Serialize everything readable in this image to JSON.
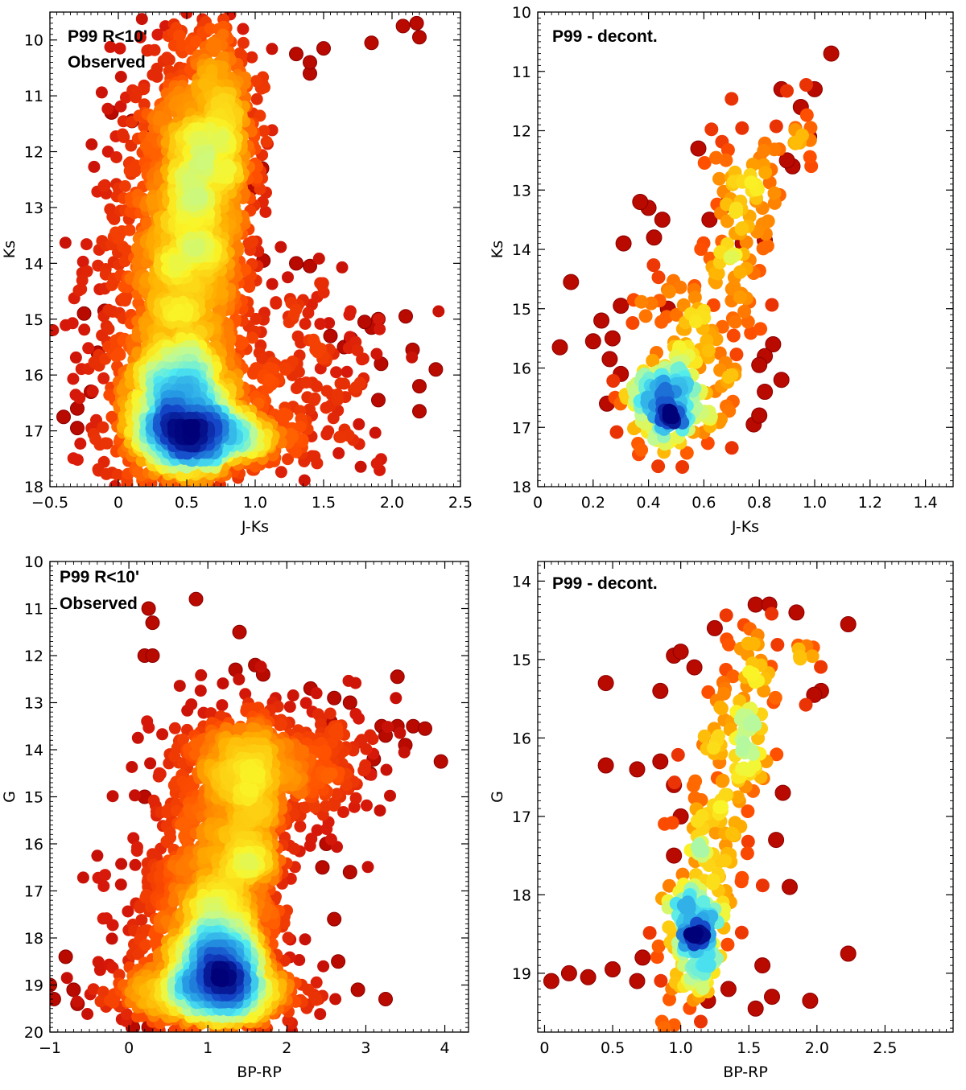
{
  "chart_data": [
    {
      "id": "p1",
      "type": "scatter",
      "subtype": "density-colored CMD",
      "annotation": [
        "P99 R<10'",
        "Observed"
      ],
      "xlabel": "J-Ks",
      "ylabel": "Ks",
      "xlim": [
        -0.5,
        2.5
      ],
      "ylim": [
        18,
        9.5
      ],
      "y_inverted": true,
      "xticks": [
        -0.5,
        0,
        0.5,
        1.0,
        1.5,
        2.0,
        2.5
      ],
      "xtick_labels": [
        "−0.5",
        "0",
        "0.5",
        "1.0",
        "1.5",
        "2.0",
        "2.5"
      ],
      "xminor": 0.05,
      "yticks": [
        10,
        11,
        12,
        13,
        14,
        15,
        16,
        17,
        18
      ],
      "ytick_labels": [
        "10",
        "11",
        "12",
        "13",
        "14",
        "15",
        "16",
        "17",
        "18"
      ],
      "yminor": 0.1,
      "density_model": {
        "clusters": [
          {
            "x": 0.45,
            "y": 16.6,
            "sx": 0.2,
            "sy": 0.7,
            "n": 9000
          },
          {
            "x": 0.65,
            "y": 17.1,
            "sx": 0.25,
            "sy": 0.25,
            "n": 5000
          },
          {
            "x": 0.55,
            "y": 13.4,
            "sx": 0.18,
            "sy": 1.7,
            "n": 7000
          },
          {
            "x": 0.75,
            "y": 11.8,
            "sx": 0.15,
            "sy": 1.1,
            "n": 3500
          },
          {
            "x": 0.3,
            "y": 14.5,
            "sx": 0.25,
            "sy": 2.0,
            "n": 4000
          },
          {
            "x": 1.3,
            "y": 16.0,
            "sx": 0.35,
            "sy": 1.0,
            "n": 1200
          }
        ],
        "scatter": [
          [
            2.08,
            9.75
          ],
          [
            2.18,
            9.7
          ],
          [
            2.2,
            9.95
          ],
          [
            1.85,
            10.05
          ],
          [
            1.3,
            10.25
          ],
          [
            1.4,
            10.6
          ],
          [
            1.5,
            10.15
          ],
          [
            1.4,
            10.4
          ],
          [
            0.1,
            11.45
          ],
          [
            0.25,
            11.7
          ],
          [
            -0.05,
            11.3
          ],
          [
            1.9,
            15.0
          ],
          [
            2.1,
            14.95
          ],
          [
            2.15,
            15.55
          ],
          [
            2.32,
            15.9
          ],
          [
            2.2,
            16.2
          ],
          [
            2.2,
            16.65
          ],
          [
            1.9,
            16.45
          ],
          [
            1.85,
            15.15
          ],
          [
            1.65,
            15.5
          ],
          [
            1.3,
            14.0
          ],
          [
            1.4,
            14.05
          ],
          [
            1.06,
            13.95
          ],
          [
            0.98,
            12.65
          ],
          [
            1.05,
            12.3
          ],
          [
            -0.3,
            16.6
          ],
          [
            -0.4,
            16.75
          ],
          [
            -0.3,
            16.95
          ],
          [
            -0.2,
            16.3
          ],
          [
            -0.15,
            15.6
          ],
          [
            -0.25,
            14.9
          ],
          [
            -0.1,
            14.85
          ],
          [
            1.8,
            15.05
          ],
          [
            1.92,
            15.8
          ],
          [
            1.7,
            15.35
          ],
          [
            1.55,
            15.3
          ]
        ]
      }
    },
    {
      "id": "p2",
      "type": "scatter",
      "subtype": "density-colored CMD (decontaminated)",
      "annotation": [
        "P99 - decont."
      ],
      "xlabel": "J-Ks",
      "ylabel": "Ks",
      "xlim": [
        0,
        1.5
      ],
      "ylim": [
        18,
        10
      ],
      "y_inverted": true,
      "xticks": [
        0,
        0.2,
        0.4,
        0.6,
        0.8,
        1.0,
        1.2,
        1.4
      ],
      "xtick_labels": [
        "0",
        "0.2",
        "0.4",
        "0.6",
        "0.8",
        "1.0",
        "1.2",
        "1.4"
      ],
      "xminor": 0.025,
      "yticks": [
        10,
        11,
        12,
        13,
        14,
        15,
        16,
        17,
        18
      ],
      "ytick_labels": [
        "10",
        "11",
        "12",
        "13",
        "14",
        "15",
        "16",
        "17",
        "18"
      ],
      "yminor": 0.1,
      "density_model": {
        "clusters": [
          {
            "x": 0.47,
            "y": 16.6,
            "sx": 0.08,
            "sy": 0.4,
            "n": 160
          },
          {
            "x": 0.55,
            "y": 15.8,
            "sx": 0.09,
            "sy": 0.8,
            "n": 90
          },
          {
            "x": 0.7,
            "y": 14.2,
            "sx": 0.06,
            "sy": 1.2,
            "n": 80
          },
          {
            "x": 0.78,
            "y": 12.8,
            "sx": 0.05,
            "sy": 0.5,
            "n": 35
          },
          {
            "x": 0.95,
            "y": 11.8,
            "sx": 0.03,
            "sy": 0.4,
            "n": 14
          }
        ],
        "scatter": [
          [
            1.06,
            10.7
          ],
          [
            0.08,
            15.65
          ],
          [
            0.12,
            14.55
          ],
          [
            0.25,
            16.6
          ],
          [
            0.3,
            14.95
          ],
          [
            0.31,
            13.9
          ],
          [
            0.4,
            13.3
          ],
          [
            0.37,
            13.2
          ],
          [
            0.42,
            13.8
          ],
          [
            0.45,
            13.5
          ],
          [
            0.58,
            12.3
          ],
          [
            0.92,
            12.6
          ],
          [
            1.0,
            11.3
          ],
          [
            0.95,
            11.6
          ],
          [
            0.88,
            11.3
          ],
          [
            0.85,
            15.6
          ],
          [
            0.82,
            15.8
          ],
          [
            0.8,
            15.95
          ],
          [
            0.88,
            16.2
          ],
          [
            0.82,
            16.4
          ],
          [
            0.78,
            16.95
          ],
          [
            0.8,
            16.8
          ],
          [
            0.23,
            15.2
          ],
          [
            0.27,
            15.5
          ],
          [
            0.3,
            16.1
          ],
          [
            0.62,
            13.5
          ],
          [
            0.68,
            13.25
          ],
          [
            0.74,
            13.9
          ],
          [
            0.82,
            13.85
          ],
          [
            0.9,
            12.5
          ],
          [
            0.98,
            12.1
          ],
          [
            0.2,
            15.55
          ],
          [
            0.26,
            15.85
          ],
          [
            0.47,
            15.0
          ]
        ]
      }
    },
    {
      "id": "p3",
      "type": "scatter",
      "subtype": "density-colored CMD",
      "annotation": [
        "P99 R<10'",
        "Observed"
      ],
      "xlabel": "BP-RP",
      "ylabel": "G",
      "xlim": [
        -1,
        4.3
      ],
      "ylim": [
        20,
        10
      ],
      "y_inverted": true,
      "xticks": [
        -1,
        0,
        1,
        2,
        3,
        4
      ],
      "xtick_labels": [
        "−1",
        "0",
        "1",
        "2",
        "3",
        "4"
      ],
      "xminor": 0.1,
      "yticks": [
        10,
        11,
        12,
        13,
        14,
        15,
        16,
        17,
        18,
        19,
        20
      ],
      "ytick_labels": [
        "10",
        "11",
        "12",
        "13",
        "14",
        "15",
        "16",
        "17",
        "18",
        "19",
        "20"
      ],
      "yminor": 0.1,
      "density_model": {
        "clusters": [
          {
            "x": 1.15,
            "y": 18.6,
            "sx": 0.3,
            "sy": 0.6,
            "n": 9000
          },
          {
            "x": 1.0,
            "y": 19.2,
            "sx": 0.55,
            "sy": 0.3,
            "n": 4500
          },
          {
            "x": 1.55,
            "y": 15.9,
            "sx": 0.22,
            "sy": 1.2,
            "n": 3500
          },
          {
            "x": 1.1,
            "y": 16.7,
            "sx": 0.3,
            "sy": 1.5,
            "n": 4000
          },
          {
            "x": 1.6,
            "y": 14.3,
            "sx": 0.6,
            "sy": 0.5,
            "n": 2500
          },
          {
            "x": 0.6,
            "y": 17.6,
            "sx": 0.45,
            "sy": 1.0,
            "n": 1800
          },
          {
            "x": 2.2,
            "y": 14.4,
            "sx": 0.5,
            "sy": 0.8,
            "n": 900
          }
        ],
        "scatter": [
          [
            0.25,
            11.0
          ],
          [
            0.3,
            11.3
          ],
          [
            0.85,
            10.8
          ],
          [
            1.4,
            11.5
          ],
          [
            1.35,
            12.3
          ],
          [
            1.6,
            12.2
          ],
          [
            1.7,
            12.4
          ],
          [
            0.2,
            12.0
          ],
          [
            0.3,
            12.0
          ],
          [
            3.4,
            12.45
          ],
          [
            3.2,
            13.5
          ],
          [
            3.4,
            13.5
          ],
          [
            3.6,
            13.5
          ],
          [
            3.75,
            13.55
          ],
          [
            3.95,
            14.25
          ],
          [
            3.1,
            14.2
          ],
          [
            3.25,
            13.7
          ],
          [
            3.05,
            14.5
          ],
          [
            0.2,
            15.0
          ],
          [
            2.5,
            16.0
          ],
          [
            2.45,
            16.5
          ],
          [
            2.8,
            16.6
          ],
          [
            2.6,
            17.6
          ],
          [
            3.25,
            19.3
          ],
          [
            2.9,
            19.1
          ],
          [
            2.65,
            18.5
          ],
          [
            -1.0,
            19.0
          ],
          [
            -0.95,
            19.3
          ],
          [
            -0.8,
            18.4
          ],
          [
            -0.7,
            19.1
          ],
          [
            -0.65,
            19.4
          ],
          [
            0.05,
            19.9
          ],
          [
            0.25,
            19.9
          ],
          [
            2.8,
            13.0
          ],
          [
            2.6,
            12.9
          ],
          [
            3.5,
            13.9
          ],
          [
            2.3,
            12.7
          ],
          [
            2.55,
            13.4
          ]
        ]
      }
    },
    {
      "id": "p4",
      "type": "scatter",
      "subtype": "density-colored CMD (decontaminated)",
      "annotation": [
        "P99 - decont."
      ],
      "xlabel": "BP-RP",
      "ylabel": "G",
      "xlim": [
        -0.05,
        3.0
      ],
      "ylim": [
        19.75,
        13.75
      ],
      "y_inverted": true,
      "xticks": [
        0,
        0.5,
        1.0,
        1.5,
        2.0,
        2.5
      ],
      "xtick_labels": [
        "0",
        "0.5",
        "1.0",
        "1.5",
        "2.0",
        "2.5"
      ],
      "xminor": 0.05,
      "yticks": [
        14,
        15,
        16,
        17,
        18,
        19
      ],
      "ytick_labels": [
        "14",
        "15",
        "16",
        "17",
        "18",
        "19"
      ],
      "yminor": 0.1,
      "density_model": {
        "clusters": [
          {
            "x": 1.1,
            "y": 18.5,
            "sx": 0.12,
            "sy": 0.45,
            "n": 170
          },
          {
            "x": 1.25,
            "y": 17.2,
            "sx": 0.12,
            "sy": 0.8,
            "n": 90
          },
          {
            "x": 1.45,
            "y": 16.0,
            "sx": 0.1,
            "sy": 0.7,
            "n": 70
          },
          {
            "x": 1.6,
            "y": 15.3,
            "sx": 0.12,
            "sy": 0.5,
            "n": 30
          },
          {
            "x": 1.88,
            "y": 15.0,
            "sx": 0.05,
            "sy": 0.2,
            "n": 8
          }
        ],
        "scatter": [
          [
            0.05,
            19.1
          ],
          [
            0.18,
            19.0
          ],
          [
            0.32,
            19.05
          ],
          [
            0.5,
            18.95
          ],
          [
            0.45,
            15.3
          ],
          [
            0.45,
            16.35
          ],
          [
            0.68,
            16.4
          ],
          [
            0.72,
            18.8
          ],
          [
            0.68,
            19.1
          ],
          [
            0.85,
            15.4
          ],
          [
            0.95,
            14.95
          ],
          [
            1.0,
            14.9
          ],
          [
            1.1,
            15.1
          ],
          [
            1.25,
            14.6
          ],
          [
            1.55,
            14.3
          ],
          [
            1.65,
            14.3
          ],
          [
            1.85,
            14.4
          ],
          [
            2.23,
            14.55
          ],
          [
            2.03,
            15.4
          ],
          [
            1.98,
            15.45
          ],
          [
            1.8,
            17.9
          ],
          [
            2.23,
            18.75
          ],
          [
            1.95,
            19.35
          ],
          [
            1.55,
            19.45
          ],
          [
            1.67,
            19.3
          ],
          [
            1.35,
            19.2
          ],
          [
            1.2,
            19.35
          ],
          [
            0.85,
            16.3
          ],
          [
            0.95,
            16.6
          ],
          [
            1.0,
            17.0
          ],
          [
            1.75,
            16.7
          ],
          [
            1.7,
            17.3
          ],
          [
            1.6,
            18.9
          ],
          [
            0.95,
            17.5
          ]
        ]
      }
    }
  ]
}
